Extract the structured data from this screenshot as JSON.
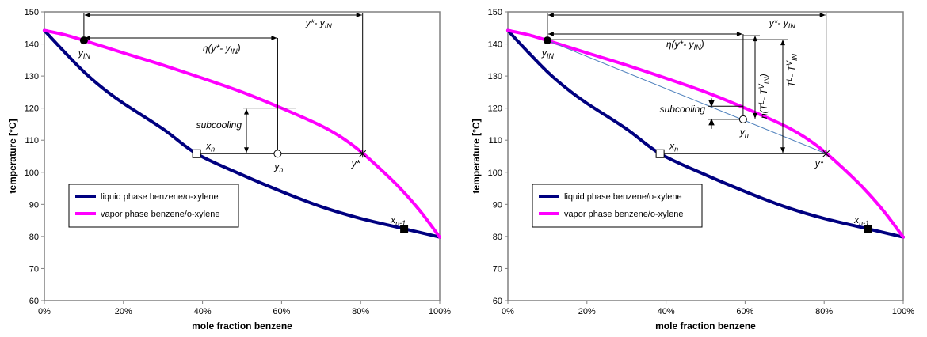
{
  "chart_data": [
    {
      "type": "line",
      "xlabel": "mole fraction benzene",
      "ylabel": "temperature [°C]",
      "xlim": [
        0,
        1
      ],
      "ylim": [
        60,
        150
      ],
      "x_ticks": [
        "0%",
        "20%",
        "40%",
        "60%",
        "80%",
        "100%"
      ],
      "y_ticks": [
        "60",
        "70",
        "80",
        "90",
        "100",
        "110",
        "120",
        "130",
        "140",
        "150"
      ],
      "grid": false,
      "legend_position": "left-center",
      "series": [
        {
          "name": "liquid phase benzene/o-xylene",
          "color": "#000080",
          "x": [
            0,
            0.05,
            0.1,
            0.15,
            0.2,
            0.3,
            0.385,
            0.5,
            0.6,
            0.7,
            0.8,
            0.91,
            1.0
          ],
          "y": [
            144.2,
            137.6,
            131.3,
            126.0,
            121.5,
            113.5,
            105.8,
            99.2,
            94.0,
            89.3,
            85.6,
            82.4,
            79.8
          ]
        },
        {
          "name": "vapor phase benzene/o-xylene",
          "color": "#ff00ff",
          "x": [
            0,
            0.05,
            0.1,
            0.2,
            0.3,
            0.4,
            0.5,
            0.6,
            0.7,
            0.75,
            0.8,
            0.85,
            0.9,
            0.95,
            1.0
          ],
          "y": [
            144.2,
            142.9,
            141.1,
            137.2,
            133.4,
            129.3,
            125.0,
            120.0,
            114.5,
            111.0,
            106.5,
            101.0,
            95.0,
            88.0,
            79.8
          ]
        }
      ],
      "points": [
        {
          "label": "y",
          "sub": "IN",
          "x": 0.1,
          "y": 141.1,
          "marker": "filled-circle"
        },
        {
          "label": "x",
          "sub": "n",
          "x": 0.385,
          "y": 105.8,
          "marker": "open-square"
        },
        {
          "label": "y",
          "sub": "n",
          "x": 0.59,
          "y": 105.8,
          "marker": "open-circle"
        },
        {
          "label": "y*",
          "sub": "",
          "x": 0.805,
          "y": 105.8,
          "marker": "star"
        },
        {
          "label": "x",
          "sub": "n-1",
          "x": 0.91,
          "y": 82.4,
          "marker": "filled-square"
        }
      ],
      "annotations": {
        "total": "y*- y",
        "total_sub": "IN",
        "eta": "η(y*- y",
        "eta_sub": "IN",
        "eta_close": ")",
        "subcooling": "subcooling"
      }
    },
    {
      "type": "line",
      "xlabel": "mole fraction benzene",
      "ylabel": "temperature [°C]",
      "xlim": [
        0,
        1
      ],
      "ylim": [
        60,
        150
      ],
      "x_ticks": [
        "0%",
        "20%",
        "40%",
        "60%",
        "80%",
        "100%"
      ],
      "y_ticks": [
        "60",
        "70",
        "80",
        "90",
        "100",
        "110",
        "120",
        "130",
        "140",
        "150"
      ],
      "grid": false,
      "legend_position": "left-center",
      "series": [
        {
          "name": "liquid phase benzene/o-xylene",
          "color": "#000080",
          "x": [
            0,
            0.05,
            0.1,
            0.15,
            0.2,
            0.3,
            0.385,
            0.5,
            0.6,
            0.7,
            0.8,
            0.91,
            1.0
          ],
          "y": [
            144.2,
            137.6,
            131.3,
            126.0,
            121.5,
            113.5,
            105.8,
            99.2,
            94.0,
            89.3,
            85.6,
            82.4,
            79.8
          ]
        },
        {
          "name": "vapor phase benzene/o-xylene",
          "color": "#ff00ff",
          "x": [
            0,
            0.05,
            0.1,
            0.2,
            0.3,
            0.4,
            0.5,
            0.6,
            0.7,
            0.75,
            0.8,
            0.85,
            0.9,
            0.95,
            1.0
          ],
          "y": [
            144.2,
            142.9,
            141.1,
            137.2,
            133.4,
            129.3,
            125.0,
            120.0,
            114.5,
            111.0,
            106.5,
            101.0,
            95.0,
            88.0,
            79.8
          ]
        }
      ],
      "points": [
        {
          "label": "y",
          "sub": "IN",
          "x": 0.1,
          "y": 141.1,
          "marker": "filled-circle"
        },
        {
          "label": "x",
          "sub": "n",
          "x": 0.385,
          "y": 105.8,
          "marker": "open-square"
        },
        {
          "label": "y",
          "sub": "n",
          "x": 0.595,
          "y": 116.5,
          "marker": "open-circle"
        },
        {
          "label": "y*",
          "sub": "",
          "x": 0.805,
          "y": 105.8,
          "marker": "star"
        },
        {
          "label": "x",
          "sub": "n-1",
          "x": 0.91,
          "y": 82.4,
          "marker": "filled-square"
        }
      ],
      "annotations": {
        "total": "y*- y",
        "total_sub": "IN",
        "eta": "η(y*- y",
        "eta_sub": "IN",
        "eta_close": ")",
        "subcooling": "subcooling",
        "rot1": "η(T",
        "rot1_sup1": "L",
        "rot1_mid": "- T",
        "rot1_sup2": "V",
        "rot1_sub": "IN",
        "rot1_close": ")",
        "rot2": "T",
        "rot2_sup1": "L",
        "rot2_mid": "- T",
        "rot2_sup2": "V",
        "rot2_sub": "IN"
      }
    }
  ]
}
